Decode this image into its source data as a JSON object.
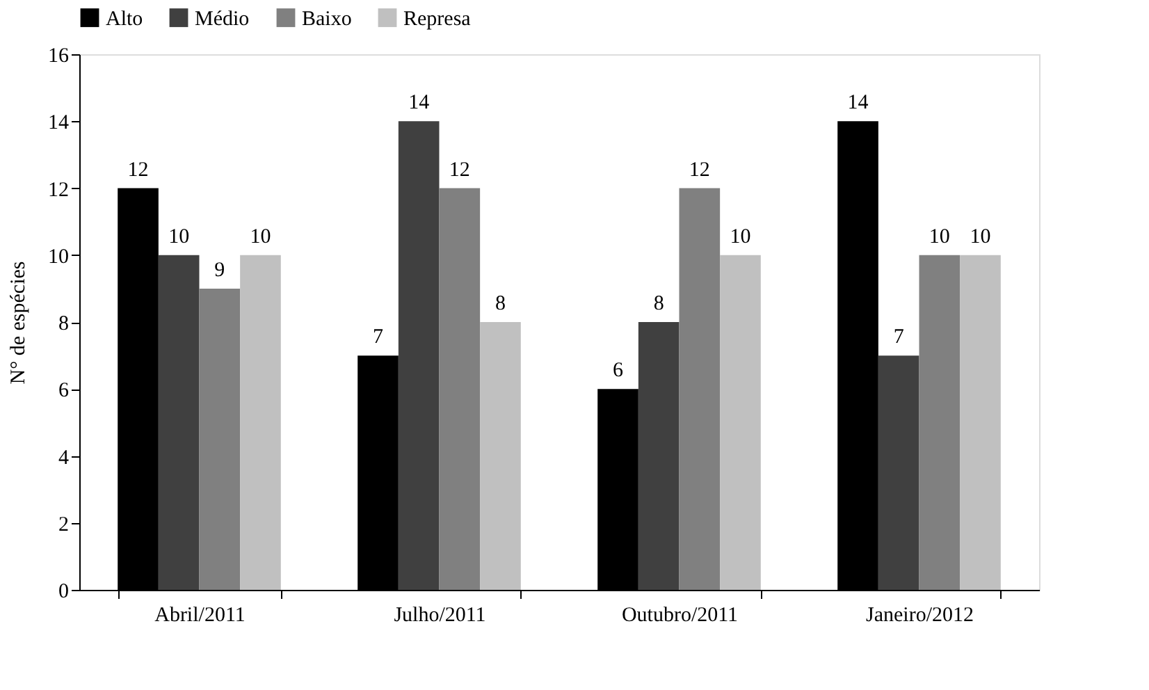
{
  "chart_data": {
    "type": "bar",
    "ylabel": "N° de espécies",
    "categories": [
      "Abril/2011",
      "Julho/2011",
      "Outubro/2011",
      "Janeiro/2012"
    ],
    "series": [
      {
        "name": "Alto",
        "color": "#000000",
        "values": [
          12,
          7,
          6,
          14
        ]
      },
      {
        "name": "Médio",
        "color": "#404040",
        "values": [
          10,
          14,
          8,
          7
        ]
      },
      {
        "name": "Baixo",
        "color": "#808080",
        "values": [
          9,
          12,
          12,
          10
        ]
      },
      {
        "name": "Represa",
        "color": "#c0c0c0",
        "values": [
          10,
          8,
          10,
          10
        ]
      }
    ],
    "ylim": [
      0,
      16
    ],
    "yticks": [
      0,
      2,
      4,
      6,
      8,
      10,
      12,
      14,
      16
    ],
    "data_labels": true,
    "legend": "top",
    "grid": false
  }
}
